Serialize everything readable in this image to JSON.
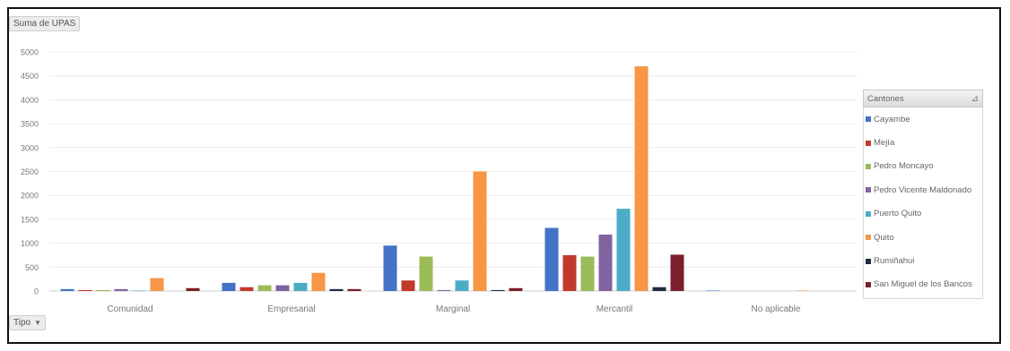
{
  "value_field_label": "Suma de UPAS",
  "axis_field_label": "Tipo",
  "legend_title": "Cantones",
  "chart_data": {
    "type": "bar",
    "categories": [
      "Comunidad",
      "Empresarial",
      "Marginal",
      "Mercantil",
      "No aplicable"
    ],
    "ylim": [
      0,
      5000
    ],
    "yticks": [
      0,
      500,
      1000,
      1500,
      2000,
      2500,
      3000,
      3500,
      4000,
      4500,
      5000
    ],
    "grid": true,
    "legend_position": "right",
    "series": [
      {
        "name": "Cayambe",
        "color": "#4472c4",
        "values": [
          40,
          170,
          950,
          1320,
          10
        ]
      },
      {
        "name": "Mejía",
        "color": "#c0392b",
        "values": [
          20,
          80,
          220,
          750,
          0
        ]
      },
      {
        "name": "Pedro Moncayo",
        "color": "#9bbb59",
        "values": [
          20,
          120,
          720,
          720,
          0
        ]
      },
      {
        "name": "Pedro Vicente Maldonado",
        "color": "#8064a2",
        "values": [
          40,
          120,
          20,
          1180,
          0
        ]
      },
      {
        "name": "Puerto Quito",
        "color": "#4bacc6",
        "values": [
          10,
          170,
          220,
          1720,
          0
        ]
      },
      {
        "name": "Quito",
        "color": "#f79646",
        "values": [
          270,
          380,
          2500,
          4700,
          10
        ]
      },
      {
        "name": "Rumiñahui",
        "color": "#1f2a44",
        "values": [
          0,
          40,
          20,
          80,
          0
        ]
      },
      {
        "name": "San Miguel de los Bancos",
        "color": "#7b1f2b",
        "values": [
          60,
          40,
          60,
          760,
          0
        ]
      }
    ]
  }
}
